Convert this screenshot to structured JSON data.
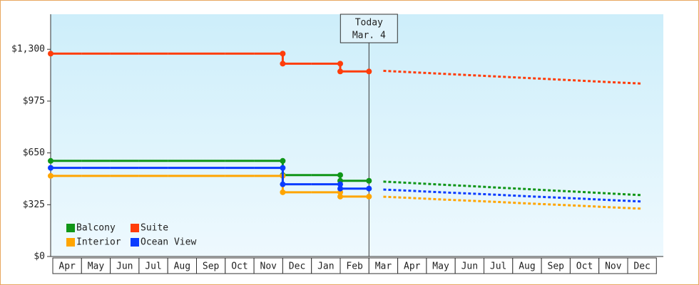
{
  "chart_data": {
    "type": "step-line",
    "annotation": [
      "Today",
      "Mar. 4"
    ],
    "categories": [
      "Apr",
      "May",
      "Jun",
      "Jul",
      "Aug",
      "Sep",
      "Oct",
      "Nov",
      "Dec",
      "Jan",
      "Feb",
      "Mar",
      "Apr",
      "May",
      "Jun",
      "Jul",
      "Aug",
      "Sep",
      "Oct",
      "Nov",
      "Dec"
    ],
    "ylim": [
      0,
      1520
    ],
    "yticks": [
      {
        "value": 0,
        "label": "$0"
      },
      {
        "value": 325,
        "label": "$325"
      },
      {
        "value": 650,
        "label": "$650"
      },
      {
        "value": 975,
        "label": "$975"
      },
      {
        "value": 1300,
        "label": "$1,300"
      }
    ],
    "series": [
      {
        "name": "Balcony",
        "color": "#109618",
        "values": [
          600,
          600,
          600,
          600,
          600,
          600,
          600,
          600,
          511,
          511,
          475,
          null,
          null,
          null,
          null,
          null,
          null,
          null,
          null,
          null,
          null
        ],
        "forecast": [
          null,
          null,
          null,
          null,
          null,
          null,
          null,
          null,
          null,
          null,
          null,
          470,
          461,
          451,
          442,
          432,
          423,
          413,
          404,
          394,
          385
        ]
      },
      {
        "name": "Suite",
        "color": "#ff3d0a",
        "values": [
          1273,
          1273,
          1273,
          1273,
          1273,
          1273,
          1273,
          1273,
          1210,
          1210,
          1161,
          null,
          null,
          null,
          null,
          null,
          null,
          null,
          null,
          null,
          null
        ],
        "forecast": [
          null,
          null,
          null,
          null,
          null,
          null,
          null,
          null,
          null,
          null,
          null,
          1165,
          1156,
          1147,
          1138,
          1129,
          1120,
          1111,
          1102,
          1093,
          1085
        ]
      },
      {
        "name": "Interior",
        "color": "#ffa500",
        "values": [
          506,
          506,
          506,
          506,
          506,
          506,
          506,
          506,
          403,
          403,
          376,
          null,
          null,
          null,
          null,
          null,
          null,
          null,
          null,
          null,
          null
        ],
        "forecast": [
          null,
          null,
          null,
          null,
          null,
          null,
          null,
          null,
          null,
          null,
          null,
          375,
          367,
          358,
          350,
          342,
          333,
          325,
          317,
          308,
          300
        ]
      },
      {
        "name": "Ocean View",
        "color": "#0a3cff",
        "values": [
          556,
          556,
          556,
          556,
          556,
          556,
          556,
          556,
          453,
          453,
          426,
          null,
          null,
          null,
          null,
          null,
          null,
          null,
          null,
          null,
          null
        ],
        "forecast": [
          null,
          null,
          null,
          null,
          null,
          null,
          null,
          null,
          null,
          null,
          null,
          420,
          412,
          403,
          395,
          387,
          378,
          370,
          362,
          353,
          345
        ]
      }
    ]
  }
}
